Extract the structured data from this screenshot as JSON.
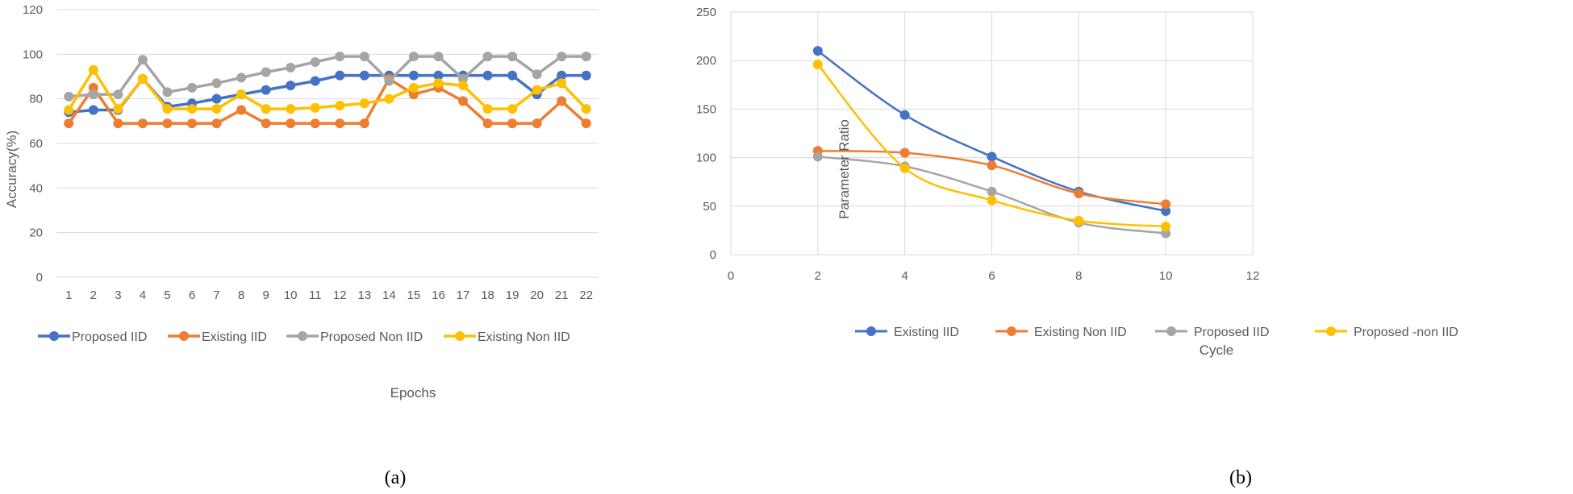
{
  "chart_data": [
    {
      "panel_label": "(a)",
      "type": "line",
      "title": "",
      "xlabel": "Epochs",
      "ylabel": "Accuracy(%)",
      "categories": [
        "1",
        "2",
        "3",
        "4",
        "5",
        "6",
        "7",
        "8",
        "9",
        "10",
        "11",
        "12",
        "13",
        "14",
        "15",
        "16",
        "17",
        "18",
        "19",
        "20",
        "21",
        "22"
      ],
      "ylim": [
        0,
        120
      ],
      "yticks": [
        0,
        20,
        40,
        60,
        80,
        100,
        120
      ],
      "grid": true,
      "legend": "bottom",
      "series": [
        {
          "name": "Proposed IID",
          "color": "#4472C4",
          "values": [
            74,
            75,
            75,
            89,
            76.5,
            78,
            80,
            82,
            84,
            86,
            88,
            90.5,
            90.5,
            90.5,
            90.5,
            90.5,
            90.5,
            90.5,
            90.5,
            82,
            90.5,
            90.5
          ]
        },
        {
          "name": "Existing IID",
          "color": "#ED7D31",
          "values": [
            69,
            85,
            69,
            69,
            69,
            69,
            69,
            75,
            69,
            69,
            69,
            69,
            69,
            89,
            82,
            85,
            79,
            69,
            69,
            69,
            79,
            69
          ]
        },
        {
          "name": "Proposed Non IID",
          "color": "#A5A5A5",
          "values": [
            81,
            82,
            82,
            97.5,
            83,
            85,
            87,
            89.5,
            92,
            94,
            96.5,
            99,
            99,
            88,
            99,
            99,
            89,
            99,
            99,
            91,
            99,
            99
          ]
        },
        {
          "name": "Existing Non IID",
          "color": "#FFC000",
          "values": [
            75,
            93,
            75.5,
            89,
            75.5,
            75.5,
            75.5,
            82,
            75.5,
            75.5,
            76,
            77,
            78,
            80,
            85,
            87,
            86,
            75.5,
            75.5,
            84,
            87,
            75.5
          ]
        }
      ]
    },
    {
      "panel_label": "(b)",
      "type": "scatter",
      "title": "",
      "xlabel": "Cycle",
      "ylabel": "Parameter Ratio",
      "xlim": [
        0,
        12
      ],
      "xticks": [
        0,
        2,
        4,
        6,
        8,
        10,
        12
      ],
      "ylim": [
        0,
        250
      ],
      "yticks": [
        0,
        50,
        100,
        150,
        200,
        250
      ],
      "grid": true,
      "smooth": true,
      "legend": "bottom",
      "series": [
        {
          "name": "Existing IID",
          "color": "#4472C4",
          "x": [
            2,
            4,
            6,
            8,
            10
          ],
          "y": [
            210,
            144,
            101,
            65,
            45
          ]
        },
        {
          "name": "Existing Non IID",
          "color": "#ED7D31",
          "x": [
            2,
            4,
            6,
            8,
            10
          ],
          "y": [
            107,
            105,
            92,
            63,
            52
          ]
        },
        {
          "name": "Proposed IID",
          "color": "#A5A5A5",
          "x": [
            2,
            4,
            6,
            8,
            10
          ],
          "y": [
            101,
            91,
            65,
            33,
            22
          ]
        },
        {
          "name": "Proposed -non IID",
          "color": "#FFC000",
          "x": [
            2,
            4,
            6,
            8,
            10
          ],
          "y": [
            196,
            89,
            56,
            35,
            29
          ]
        }
      ]
    }
  ]
}
